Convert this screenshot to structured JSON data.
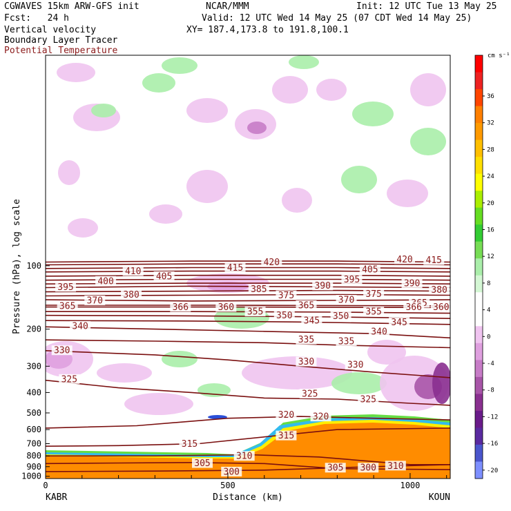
{
  "header": {
    "line1_left": "CGWAVES 15km ARW-GFS init",
    "line1_mid": "NCAR/MMM",
    "line1_right": "Init: 12 UTC Tue 13 May 25",
    "line2_left": "Fcst:   24 h",
    "line2_right": "Valid: 12 UTC Wed 14 May 25 (07 CDT Wed 14 May 25)",
    "line3_left": "Vertical velocity",
    "line3_mid": "XY= 187.4,173.8 to 191.8,100.1",
    "line4_left": "Boundary Layer Tracer",
    "line5_left": "Potential Temperature"
  },
  "chart_data": {
    "type": "cross-section",
    "xlabel": "Distance (km)",
    "ylabel": "Pressure (hPa), log scale",
    "x_ticks": [
      0,
      500,
      1000
    ],
    "xlim": [
      0,
      1110
    ],
    "y_ticks": [
      100,
      200,
      300,
      400,
      500,
      600,
      700,
      800,
      900,
      1000
    ],
    "ylim": [
      1025,
      10
    ],
    "y_scale": "log",
    "left_endpoint": "KABR",
    "right_endpoint": "KOUN",
    "colorbar": {
      "unit": "cm s⁻¹",
      "ticks": [
        36,
        32,
        28,
        24,
        20,
        16,
        12,
        8,
        4,
        0,
        -4,
        -8,
        -12,
        -16,
        -20
      ],
      "colors": [
        "#ff0000",
        "#ee2222",
        "#ff4500",
        "#ff7f00",
        "#ff9a00",
        "#ffbf00",
        "#ffdf00",
        "#ffff00",
        "#aaee00",
        "#66dd22",
        "#33cc33",
        "#77dd55",
        "#aaeeaa",
        "#d4f7d4",
        "#ffffff",
        "#ffffff",
        "#f0c4f0",
        "#dfa0df",
        "#c77cc7",
        "#a855a8",
        "#8a3090",
        "#6a1b8a",
        "#5a2aa0",
        "#4a55cc",
        "#7d8fff"
      ]
    },
    "theta_contours": [
      {
        "value": 300,
        "points": [
          [
            0,
            950
          ],
          [
            300,
            945
          ],
          [
            600,
            935
          ],
          [
            900,
            900
          ],
          [
            1110,
            880
          ]
        ]
      },
      {
        "value": 305,
        "points": [
          [
            0,
            870
          ],
          [
            200,
            865
          ],
          [
            400,
            860
          ],
          [
            600,
            870
          ],
          [
            800,
            920
          ],
          [
            1110,
            930
          ]
        ]
      },
      {
        "value": 310,
        "points": [
          [
            0,
            800
          ],
          [
            300,
            800
          ],
          [
            560,
            790
          ],
          [
            750,
            810
          ],
          [
            1000,
            880
          ],
          [
            1110,
            880
          ]
        ]
      },
      {
        "value": 315,
        "points": [
          [
            0,
            720
          ],
          [
            200,
            715
          ],
          [
            420,
            700
          ],
          [
            600,
            650
          ],
          [
            800,
            600
          ],
          [
            1110,
            590
          ]
        ]
      },
      {
        "value": 320,
        "points": [
          [
            0,
            590
          ],
          [
            250,
            575
          ],
          [
            500,
            530
          ],
          [
            700,
            520
          ],
          [
            900,
            530
          ],
          [
            1110,
            540
          ]
        ]
      },
      {
        "value": 325,
        "points": [
          [
            0,
            350
          ],
          [
            200,
            380
          ],
          [
            400,
            400
          ],
          [
            600,
            425
          ],
          [
            800,
            430
          ],
          [
            1000,
            450
          ],
          [
            1110,
            460
          ]
        ]
      },
      {
        "value": 330,
        "points": [
          [
            0,
            253
          ],
          [
            300,
            265
          ],
          [
            500,
            280
          ],
          [
            700,
            300
          ],
          [
            900,
            320
          ],
          [
            1110,
            340
          ]
        ]
      },
      {
        "value": 335,
        "points": [
          [
            0,
            225
          ],
          [
            300,
            228
          ],
          [
            600,
            232
          ],
          [
            800,
            238
          ],
          [
            1110,
            245
          ]
        ]
      },
      {
        "value": 340,
        "points": [
          [
            0,
            195
          ],
          [
            300,
            200
          ],
          [
            600,
            205
          ],
          [
            900,
            210
          ],
          [
            1110,
            220
          ]
        ]
      },
      {
        "value": 345,
        "points": [
          [
            0,
            182
          ],
          [
            400,
            183
          ],
          [
            700,
            185
          ],
          [
            1110,
            190
          ]
        ]
      },
      {
        "value": 350,
        "points": [
          [
            0,
            172
          ],
          [
            400,
            173
          ],
          [
            800,
            175
          ],
          [
            1110,
            178
          ]
        ]
      },
      {
        "value": 355,
        "points": [
          [
            0,
            165
          ],
          [
            400,
            165
          ],
          [
            800,
            166
          ],
          [
            1110,
            168
          ]
        ]
      },
      {
        "value": 360,
        "points": [
          [
            0,
            157
          ],
          [
            500,
            157
          ],
          [
            1110,
            158
          ]
        ]
      },
      {
        "value": 365,
        "points": [
          [
            0,
            154
          ],
          [
            500,
            154
          ],
          [
            1110,
            155
          ]
        ]
      },
      {
        "value": 370,
        "points": [
          [
            0,
            145
          ],
          [
            400,
            147
          ],
          [
            800,
            146
          ],
          [
            1110,
            145
          ]
        ]
      },
      {
        "value": 375,
        "points": [
          [
            0,
            139
          ],
          [
            400,
            138
          ],
          [
            800,
            137
          ],
          [
            1110,
            138
          ]
        ]
      },
      {
        "value": 380,
        "points": [
          [
            0,
            133
          ],
          [
            400,
            132
          ],
          [
            800,
            131
          ],
          [
            1110,
            132
          ]
        ]
      },
      {
        "value": 385,
        "points": [
          [
            0,
            127
          ],
          [
            400,
            125
          ],
          [
            800,
            126
          ],
          [
            1110,
            127
          ]
        ]
      },
      {
        "value": 390,
        "points": [
          [
            0,
            122
          ],
          [
            400,
            121
          ],
          [
            800,
            121
          ],
          [
            1110,
            122
          ]
        ]
      },
      {
        "value": 395,
        "points": [
          [
            0,
            117
          ],
          [
            400,
            116
          ],
          [
            800,
            116
          ],
          [
            1110,
            117
          ]
        ]
      },
      {
        "value": 400,
        "points": [
          [
            0,
            112
          ],
          [
            400,
            111
          ],
          [
            800,
            111
          ],
          [
            1110,
            112
          ]
        ]
      },
      {
        "value": 405,
        "points": [
          [
            0,
            107
          ],
          [
            400,
            106
          ],
          [
            800,
            106
          ],
          [
            1110,
            107
          ]
        ]
      },
      {
        "value": 410,
        "points": [
          [
            0,
            103
          ],
          [
            400,
            102
          ],
          [
            800,
            102
          ],
          [
            1110,
            103
          ]
        ]
      },
      {
        "value": 415,
        "points": [
          [
            0,
            99
          ],
          [
            400,
            98
          ],
          [
            800,
            98
          ],
          [
            1110,
            99
          ]
        ]
      },
      {
        "value": 420,
        "points": [
          [
            0,
            96
          ],
          [
            400,
            95
          ],
          [
            800,
            95
          ],
          [
            1110,
            96
          ]
        ]
      }
    ],
    "theta_labels": [
      {
        "text": "300",
        "x": 510,
        "p": 950
      },
      {
        "text": "300",
        "x": 885,
        "p": 910
      },
      {
        "text": "305",
        "x": 430,
        "p": 865
      },
      {
        "text": "305",
        "x": 795,
        "p": 910
      },
      {
        "text": "310",
        "x": 545,
        "p": 800
      },
      {
        "text": "310",
        "x": 960,
        "p": 890
      },
      {
        "text": "315",
        "x": 395,
        "p": 700
      },
      {
        "text": "315",
        "x": 660,
        "p": 640
      },
      {
        "text": "320",
        "x": 660,
        "p": 510
      },
      {
        "text": "320",
        "x": 755,
        "p": 520
      },
      {
        "text": "325",
        "x": 65,
        "p": 345
      },
      {
        "text": "325",
        "x": 725,
        "p": 405
      },
      {
        "text": "325",
        "x": 885,
        "p": 430
      },
      {
        "text": "330",
        "x": 45,
        "p": 252
      },
      {
        "text": "330",
        "x": 715,
        "p": 285
      },
      {
        "text": "330",
        "x": 850,
        "p": 295
      },
      {
        "text": "335",
        "x": 715,
        "p": 224
      },
      {
        "text": "335",
        "x": 825,
        "p": 228
      },
      {
        "text": "340",
        "x": 95,
        "p": 193
      },
      {
        "text": "340",
        "x": 915,
        "p": 205
      },
      {
        "text": "345",
        "x": 730,
        "p": 182
      },
      {
        "text": "345",
        "x": 970,
        "p": 185
      },
      {
        "text": "350",
        "x": 655,
        "p": 172
      },
      {
        "text": "350",
        "x": 810,
        "p": 173
      },
      {
        "text": "355",
        "x": 575,
        "p": 165
      },
      {
        "text": "355",
        "x": 900,
        "p": 165
      },
      {
        "text": "360",
        "x": 495,
        "p": 157
      },
      {
        "text": "360",
        "x": 1085,
        "p": 157
      },
      {
        "text": "365",
        "x": 60,
        "p": 155
      },
      {
        "text": "365",
        "x": 715,
        "p": 154
      },
      {
        "text": "365",
        "x": 1025,
        "p": 150
      },
      {
        "text": "366",
        "x": 370,
        "p": 157
      },
      {
        "text": "366",
        "x": 1010,
        "p": 157
      },
      {
        "text": "370",
        "x": 135,
        "p": 146
      },
      {
        "text": "370",
        "x": 825,
        "p": 145
      },
      {
        "text": "375",
        "x": 660,
        "p": 138
      },
      {
        "text": "375",
        "x": 900,
        "p": 136
      },
      {
        "text": "380",
        "x": 235,
        "p": 137
      },
      {
        "text": "380",
        "x": 1080,
        "p": 130
      },
      {
        "text": "385",
        "x": 585,
        "p": 129
      },
      {
        "text": "390",
        "x": 760,
        "p": 124
      },
      {
        "text": "390",
        "x": 1005,
        "p": 121
      },
      {
        "text": "395",
        "x": 55,
        "p": 126
      },
      {
        "text": "395",
        "x": 840,
        "p": 116
      },
      {
        "text": "400",
        "x": 165,
        "p": 118
      },
      {
        "text": "405",
        "x": 325,
        "p": 112
      },
      {
        "text": "405",
        "x": 890,
        "p": 104
      },
      {
        "text": "410",
        "x": 240,
        "p": 106
      },
      {
        "text": "415",
        "x": 520,
        "p": 102
      },
      {
        "text": "415",
        "x": 1065,
        "p": 94
      },
      {
        "text": "420",
        "x": 620,
        "p": 96
      },
      {
        "text": "420",
        "x": 985,
        "p": 93
      }
    ]
  }
}
